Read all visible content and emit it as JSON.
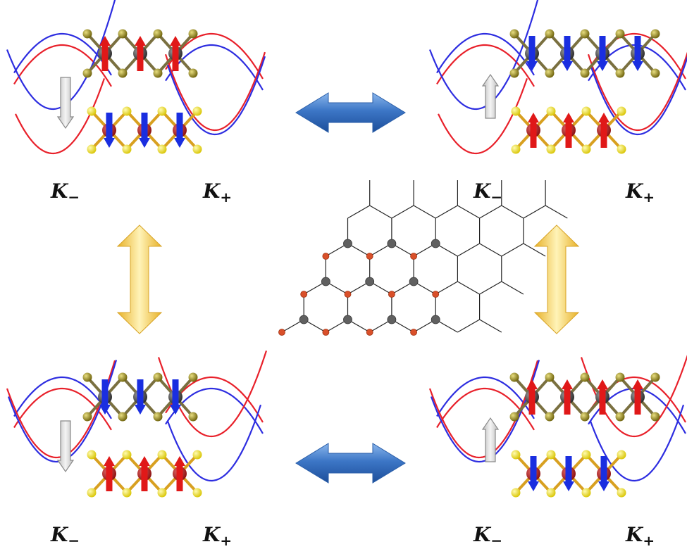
{
  "panels": [
    {
      "id": "top-left",
      "k_minus": "K",
      "k_minus_sub": "−",
      "k_plus": "K",
      "k_plus_sub": "+",
      "upper_spin": "up",
      "lower_spin": "down",
      "transition": "down"
    },
    {
      "id": "top-right",
      "k_minus": "K",
      "k_minus_sub": "−",
      "k_plus": "K",
      "k_plus_sub": "+",
      "upper_spin": "down",
      "lower_spin": "up",
      "transition": "up"
    },
    {
      "id": "bottom-left",
      "k_minus": "K",
      "k_minus_sub": "−",
      "k_plus": "K",
      "k_plus_sub": "+",
      "upper_spin": "down",
      "lower_spin": "up",
      "transition": "down"
    },
    {
      "id": "bottom-right",
      "k_minus": "K",
      "k_minus_sub": "−",
      "k_plus": "K",
      "k_plus_sub": "+",
      "upper_spin": "up",
      "lower_spin": "down",
      "transition": "up"
    }
  ],
  "connectors": {
    "horizontal_top": "blue-double-arrow",
    "horizontal_bottom": "blue-double-arrow",
    "vertical_left": "yellow-double-arrow",
    "vertical_right": "yellow-double-arrow"
  },
  "colors": {
    "band_red": "#e8202a",
    "band_blue": "#2d2de0",
    "spin_red": "#e01818",
    "spin_blue": "#1a2ee0",
    "upper_atom": "#8a7d10",
    "lower_atom": "#f2e61a",
    "metal_atom": "#505050",
    "lattice_orange": "#d9502a",
    "lattice_gray": "#606060",
    "blue_arrow": "#3f78c8",
    "yellow_arrow": "#f2cf50"
  }
}
